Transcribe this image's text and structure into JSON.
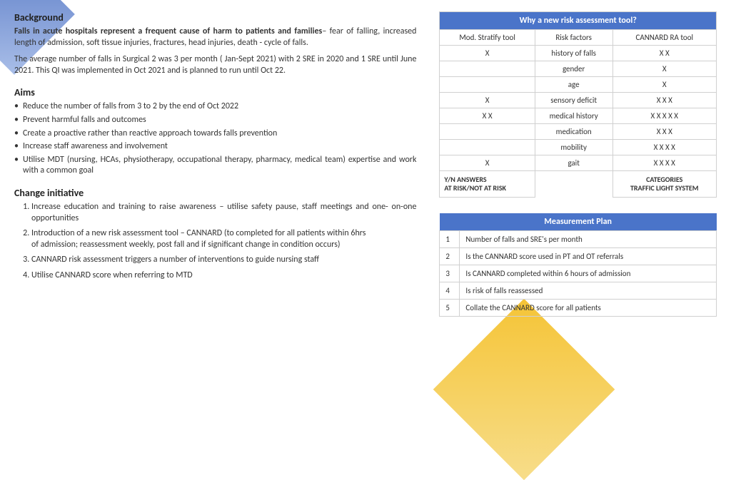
{
  "background": {
    "heading": "Background",
    "p1_bold": "Falls in acute hospitals represent a frequent cause of harm to patients and families",
    "p1_rest": "– fear of falling,  increased length of admission, soft tissue injuries, fractures, head injuries, death - cycle of falls.",
    "p2": "The average number of falls in Surgical 2 was 3 per month ( Jan-Sept 2021) with 2 SRE in 2020 and 1 SRE until June 2021. This QI was implemented in Oct 2021 and is planned to run until Oct 22."
  },
  "aims": {
    "heading": "Aims",
    "items": [
      "Reduce the number of falls from 3 to 2 by the end of Oct 2022",
      "Prevent harmful falls and outcomes",
      "Create a proactive rather than reactive approach towards falls prevention",
      "Increase staff awareness and involvement",
      "Utilise MDT (nursing, HCAs, physiotherapy, occupational therapy, pharmacy, medical team) expertise and work with a common goal"
    ]
  },
  "change": {
    "heading": "Change initiative",
    "items": [
      "Increase education and training to raise awareness – utilise safety pause, staff meetings and one- on-one opportunities",
      "Introduction of a new risk assessment tool – CANNARD (to completed for all patients within 6hrs\nof admission; reassessment weekly, post fall and if significant change in condition occurs)",
      "CANNARD risk assessment triggers a number of interventions to guide nursing staff",
      "Utilise CANNARD score when referring to MTD"
    ]
  },
  "riskTable": {
    "title": "Why a new risk assessment tool?",
    "cols": [
      "Mod. Stratify tool",
      "Risk factors",
      "CANNARD RA tool"
    ],
    "rows": [
      [
        "X",
        "history of falls",
        "X  X"
      ],
      [
        "",
        "gender",
        "X"
      ],
      [
        "",
        "age",
        "X"
      ],
      [
        "X",
        "sensory deficit",
        "X  X  X"
      ],
      [
        "X  X",
        "medical history",
        "X X  X  X  X"
      ],
      [
        "",
        "medication",
        "X  X  X"
      ],
      [
        "",
        "mobility",
        "X X  X  X"
      ],
      [
        "X",
        "gait",
        "X X  X  X"
      ]
    ],
    "foot_left": "Y/N ANSWERS\nAT RISK/NOT AT RISK",
    "foot_right": "CATEGORIES\nTRAFFIC LIGHT SYSTEM"
  },
  "measurement": {
    "title": "Measurement Plan",
    "rows": [
      [
        "1",
        "Number of falls and SRE's per month"
      ],
      [
        "2",
        "Is the CANNARD score used in PT and OT referrals"
      ],
      [
        "3",
        "Is CANNARD completed within 6 hours of admission"
      ],
      [
        "4",
        "Is risk of falls reassessed"
      ],
      [
        "5",
        "Collate the CANNARD score for all patients"
      ]
    ]
  },
  "colors": {
    "accent": "#4a74c9",
    "border": "#d0d0d0"
  }
}
